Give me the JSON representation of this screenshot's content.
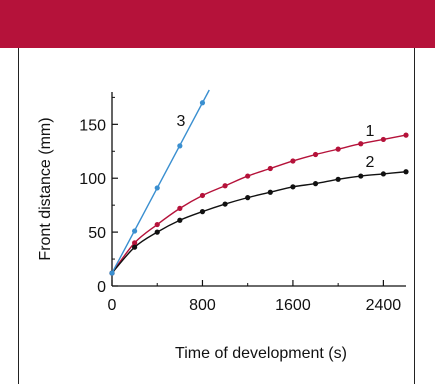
{
  "chart_data": {
    "type": "line",
    "xlabel": "Time of development (s)",
    "ylabel": "Front distance (mm)",
    "xlim": [
      0,
      2600
    ],
    "ylim": [
      0,
      180
    ],
    "x_ticks": [
      "0",
      "800",
      "1600",
      "2400"
    ],
    "y_ticks": [
      "0",
      "50",
      "100",
      "150"
    ],
    "grid": false,
    "series": [
      {
        "name": "1",
        "color": "#b5123a",
        "x": [
          0,
          200,
          400,
          600,
          800,
          1000,
          1200,
          1400,
          1600,
          1800,
          2000,
          2200,
          2400,
          2600
        ],
        "y": [
          12,
          40,
          57,
          72,
          84,
          93,
          102,
          109,
          116,
          122,
          127,
          132,
          136,
          140
        ]
      },
      {
        "name": "2",
        "color": "#111111",
        "x": [
          0,
          200,
          400,
          600,
          800,
          1000,
          1200,
          1400,
          1600,
          1800,
          2000,
          2200,
          2400,
          2600
        ],
        "y": [
          12,
          36,
          50,
          61,
          69,
          76,
          82,
          87,
          92,
          95,
          99,
          102,
          104,
          106
        ]
      },
      {
        "name": "3",
        "color": "#3a8fd0",
        "x": [
          0,
          200,
          400,
          600,
          800
        ],
        "y": [
          12,
          51,
          91,
          130,
          170
        ]
      }
    ]
  },
  "colors": {
    "banner": "#b5123a",
    "frame": "#222222"
  }
}
